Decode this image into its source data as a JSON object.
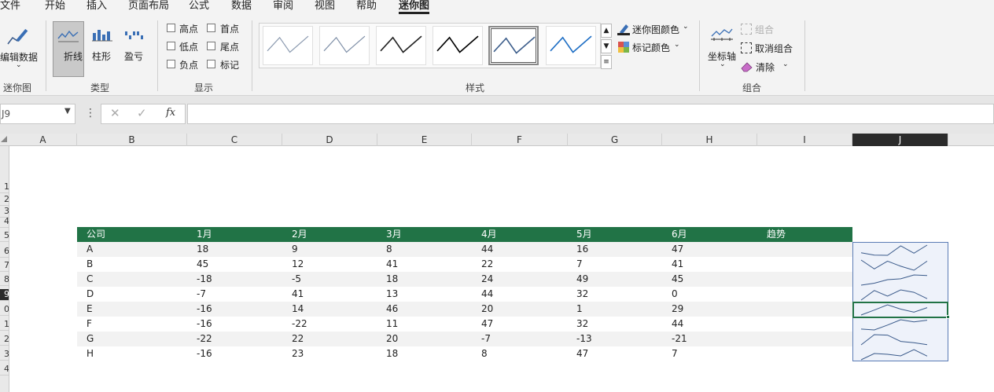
{
  "ribbon": {
    "tabs": [
      {
        "label": "文件",
        "active": false
      },
      {
        "label": "开始",
        "active": false
      },
      {
        "label": "插入",
        "active": false
      },
      {
        "label": "页面布局",
        "active": false
      },
      {
        "label": "公式",
        "active": false
      },
      {
        "label": "数据",
        "active": false
      },
      {
        "label": "审阅",
        "active": false
      },
      {
        "label": "视图",
        "active": false
      },
      {
        "label": "帮助",
        "active": false
      },
      {
        "label": "迷你图",
        "active": true
      }
    ],
    "groups": {
      "sparkline": {
        "label": "迷你图",
        "edit_data": "编辑数据"
      },
      "type": {
        "label": "类型",
        "line": "折线",
        "column": "柱形",
        "winloss": "盈亏"
      },
      "show": {
        "label": "显示",
        "high_point": "高点",
        "first_point": "首点",
        "low_point": "低点",
        "last_point": "尾点",
        "negative_point": "负点",
        "markers": "标记"
      },
      "style": {
        "label": "样式"
      },
      "color": {
        "sparkline_color": "迷你图颜色",
        "marker_color": "标记颜色"
      },
      "group": {
        "label": "组合",
        "axis": "坐标轴",
        "group": "组合",
        "ungroup": "取消组合",
        "clear": "清除"
      }
    },
    "styles": [
      {
        "color": "#8c9bb0",
        "width": 1.2
      },
      {
        "color": "#7f90a8",
        "width": 1.2
      },
      {
        "color": "#222222",
        "width": 1.6
      },
      {
        "color": "#000000",
        "width": 1.6
      },
      {
        "color": "#3e5f8c",
        "width": 1.6
      },
      {
        "color": "#1f6fc5",
        "width": 1.6
      }
    ],
    "selected_style": 4
  },
  "formula_bar": {
    "name_box": "J9",
    "formula": ""
  },
  "columns": [
    "A",
    "B",
    "C",
    "D",
    "E",
    "F",
    "G",
    "H",
    "I",
    "J"
  ],
  "selected_column": "J",
  "rows": [
    "1",
    "2",
    "3",
    "4",
    "5",
    "6",
    "7",
    "8",
    "9",
    "0",
    "1",
    "2",
    "3",
    "4"
  ],
  "selected_row_index": 8,
  "table": {
    "headers": [
      "公司",
      "1月",
      "2月",
      "3月",
      "4月",
      "5月",
      "6月",
      "趋势"
    ],
    "rows": [
      {
        "company": "A",
        "values": [
          18,
          9,
          8,
          44,
          16,
          47
        ]
      },
      {
        "company": "B",
        "values": [
          45,
          12,
          41,
          22,
          7,
          41
        ]
      },
      {
        "company": "C",
        "values": [
          -18,
          -5,
          18,
          24,
          49,
          45
        ]
      },
      {
        "company": "D",
        "values": [
          -7,
          41,
          13,
          44,
          32,
          0
        ]
      },
      {
        "company": "E",
        "values": [
          -16,
          14,
          46,
          20,
          1,
          29
        ]
      },
      {
        "company": "F",
        "values": [
          -16,
          -22,
          11,
          47,
          32,
          44
        ]
      },
      {
        "company": "G",
        "values": [
          -22,
          22,
          20,
          -7,
          -13,
          -21
        ]
      },
      {
        "company": "H",
        "values": [
          -16,
          23,
          18,
          8,
          47,
          7
        ]
      }
    ]
  },
  "colors": {
    "header_bg": "#217346",
    "row_alt": "#f2f2f2",
    "sparkline": "#3a5a8a",
    "selection": "#217346"
  }
}
